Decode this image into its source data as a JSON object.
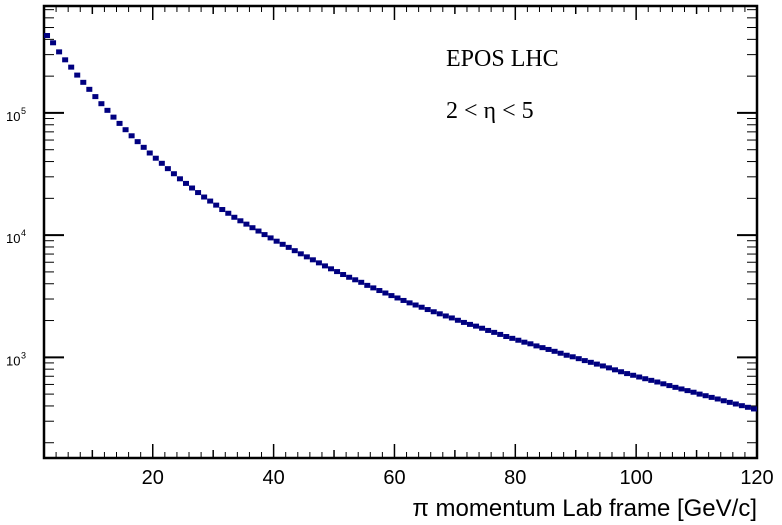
{
  "chart_data": {
    "type": "scatter",
    "title": "",
    "xlabel": "π momentum Lab frame [GeV/c]",
    "ylabel": "",
    "xlim": [
      2,
      120
    ],
    "ylim": [
      150,
      750000
    ],
    "ylog": true,
    "grid": false,
    "legend": "none",
    "marker_color": "#000080",
    "x_ticks": [
      20,
      40,
      60,
      80,
      100,
      120
    ],
    "x_tick_labels": [
      "20",
      "40",
      "60",
      "80",
      "100",
      "120"
    ],
    "y_ticks": [
      {
        "value": 1000,
        "base": "10",
        "exp": "3"
      },
      {
        "value": 10000,
        "base": "10",
        "exp": "4"
      },
      {
        "value": 100000,
        "base": "10",
        "exp": "5"
      }
    ],
    "annotations": [
      "EPOS LHC",
      "2 < η < 5"
    ],
    "series": [
      {
        "x": [
          2.5,
          3.5,
          4.5,
          5.5,
          6.5,
          7.5,
          8.5,
          9.5,
          10.5,
          11.5,
          12.5,
          13.5,
          14.5,
          15.5,
          16.5,
          17.5,
          18.5,
          19.5,
          20.5,
          21.5,
          22.5,
          23.5,
          24.5,
          25.5,
          26.5,
          27.5,
          28.5,
          29.5,
          30.5,
          31.5,
          32.5,
          33.5,
          34.5,
          35.5,
          36.5,
          37.5,
          38.5,
          39.5,
          40.5,
          41.5,
          42.5,
          43.5,
          44.5,
          45.5,
          46.5,
          47.5,
          48.5,
          49.5,
          50.5,
          51.5,
          52.5,
          53.5,
          54.5,
          55.5,
          56.5,
          57.5,
          58.5,
          59.5,
          60.5,
          61.5,
          62.5,
          63.5,
          64.5,
          65.5,
          66.5,
          67.5,
          68.5,
          69.5,
          70.5,
          71.5,
          72.5,
          73.5,
          74.5,
          75.5,
          76.5,
          77.5,
          78.5,
          79.5,
          80.5,
          81.5,
          82.5,
          83.5,
          84.5,
          85.5,
          86.5,
          87.5,
          88.5,
          89.5,
          90.5,
          91.5,
          92.5,
          93.5,
          94.5,
          95.5,
          96.5,
          97.5,
          98.5,
          99.5,
          100.5,
          101.5,
          102.5,
          103.5,
          104.5,
          105.5,
          106.5,
          107.5,
          108.5,
          109.5,
          110.5,
          111.5,
          112.5,
          113.5,
          114.5,
          115.5,
          116.5,
          117.5,
          118.5,
          119.5
        ],
        "y": [
          430000,
          375000,
          316000,
          272000,
          237000,
          204000,
          178000,
          156000,
          136000,
          119000,
          105000,
          92400,
          82100,
          72900,
          65000,
          58200,
          52300,
          47000,
          42600,
          38700,
          35000,
          31800,
          28900,
          26500,
          24300,
          22300,
          20500,
          19000,
          17600,
          16200,
          15100,
          14000,
          13100,
          12300,
          11500,
          10800,
          10100,
          9490,
          8920,
          8410,
          7940,
          7460,
          7030,
          6640,
          6280,
          5930,
          5600,
          5300,
          5030,
          4760,
          4520,
          4310,
          4110,
          3880,
          3700,
          3520,
          3360,
          3200,
          3060,
          2920,
          2790,
          2680,
          2570,
          2460,
          2360,
          2270,
          2180,
          2100,
          2010,
          1930,
          1860,
          1800,
          1730,
          1660,
          1600,
          1540,
          1480,
          1430,
          1380,
          1330,
          1290,
          1240,
          1200,
          1160,
          1120,
          1080,
          1040,
          1010,
          975,
          940,
          910,
          880,
          850,
          820,
          790,
          762,
          736,
          713,
          690,
          668,
          648,
          628,
          607,
          587,
          568,
          551,
          534,
          518,
          500,
          485,
          470,
          456,
          441,
          428,
          415,
          402,
          390,
          378
        ]
      }
    ]
  }
}
